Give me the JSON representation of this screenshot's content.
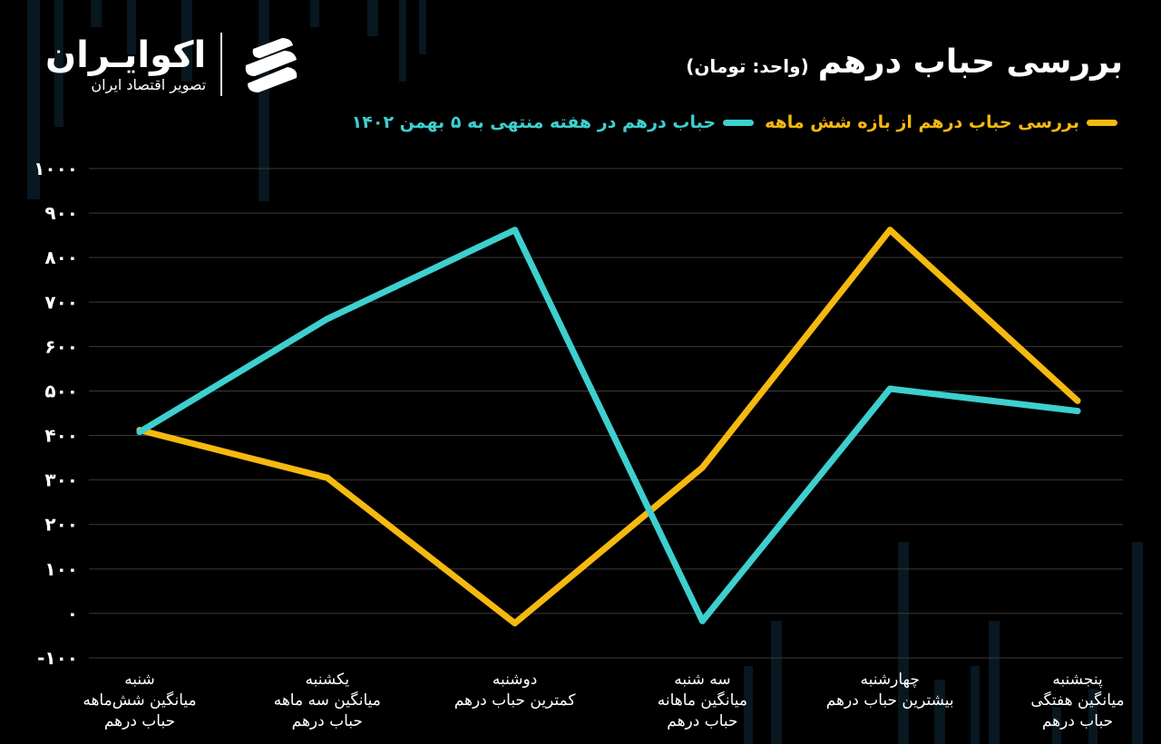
{
  "header": {
    "title": "بررسی  حباب درهم",
    "unit": "(واحد: تومان)"
  },
  "brand": {
    "name": "اکوایـران",
    "tagline": "تصویر اقتصاد ایران"
  },
  "legend": {
    "items": [
      {
        "label": "بررسی حباب درهم از بازه شش ماهه",
        "color": "#f5b90f"
      },
      {
        "label": "حباب درهم در هفته منتهی به ۵ بهمن ۱۴۰۲",
        "color": "#3ecfcf"
      }
    ]
  },
  "colors": {
    "background": "#000000",
    "grid": "#3a3a3a",
    "text": "#ffffff"
  },
  "chart_data": {
    "type": "line",
    "title": "بررسی  حباب درهم",
    "xlabel": "",
    "ylabel": "",
    "ylim": [
      -100,
      1000
    ],
    "yticks": [
      "-۱۰۰",
      "۰",
      "۱۰۰",
      "۲۰۰",
      "۳۰۰",
      "۴۰۰",
      "۵۰۰",
      "۶۰۰",
      "۷۰۰",
      "۸۰۰",
      "۹۰۰",
      "۱۰۰۰"
    ],
    "ytick_values": [
      -100,
      0,
      100,
      200,
      300,
      400,
      500,
      600,
      700,
      800,
      900,
      1000
    ],
    "grid": true,
    "legend_position": "top-right",
    "categories": [
      [
        "شنبه",
        "میانگین شش‌ماهه",
        "حباب درهم"
      ],
      [
        "یکشنبه",
        "میانگین سه ماهه",
        "حباب درهم"
      ],
      [
        "دوشنبه",
        "کمترین  حباب درهم"
      ],
      [
        "سه شنبه",
        "میانگین ماهانه",
        "حباب درهم"
      ],
      [
        "چهارشنبه",
        "بیشترین حباب درهم"
      ],
      [
        "پنجشنبه",
        "میانگین هفتگی",
        "حباب درهم"
      ]
    ],
    "series": [
      {
        "name": "بررسی حباب درهم از بازه شش ماهه",
        "color": "#f5b90f",
        "values": [
          412,
          305,
          -22,
          328,
          862,
          478
        ]
      },
      {
        "name": "حباب درهم در هفته منتهی به ۵ بهمن ۱۴۰۲",
        "color": "#3ecfcf",
        "values": [
          408,
          662,
          862,
          -17,
          505,
          455
        ]
      }
    ]
  }
}
